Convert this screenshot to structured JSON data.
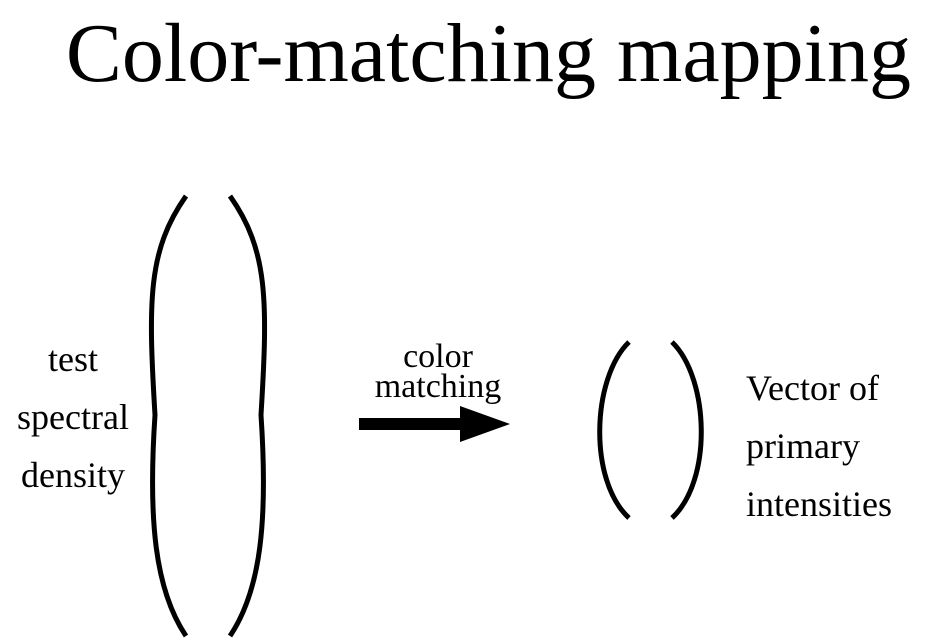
{
  "title": "Color-matching mapping",
  "input": {
    "lines": [
      "test",
      "spectral",
      "density"
    ]
  },
  "mapping": {
    "lines": [
      "color",
      "matching"
    ]
  },
  "output": {
    "lines": [
      "Vector of",
      "primary",
      "intensities"
    ]
  },
  "colors": {
    "ink": "#000000",
    "background": "#ffffff"
  }
}
